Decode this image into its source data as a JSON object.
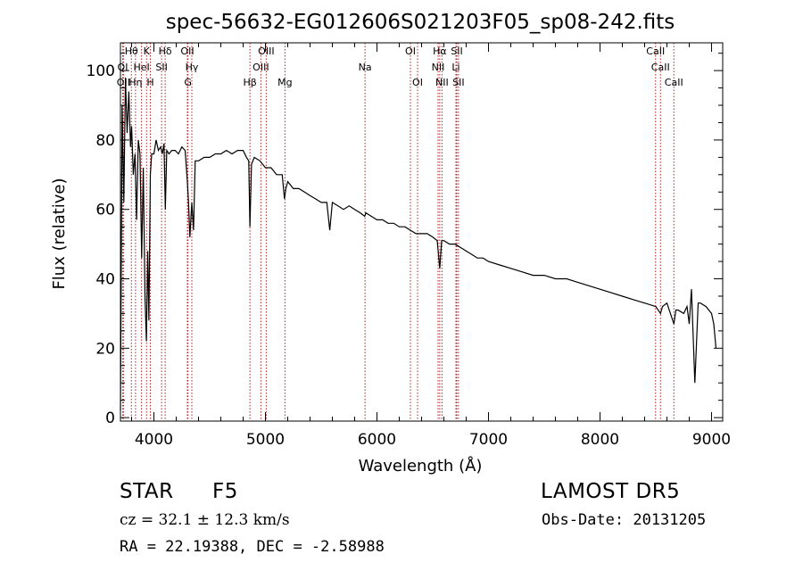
{
  "chart_data": {
    "type": "line",
    "title": "spec-56632-EG012606S021203F05_sp08-242.fits",
    "xlabel": "Wavelength (Å)",
    "ylabel": "Flux (relative)",
    "xlim": [
      3700,
      9100
    ],
    "ylim": [
      -1,
      108
    ],
    "xticks": [
      4000,
      5000,
      6000,
      7000,
      8000,
      9000
    ],
    "yticks": [
      0,
      20,
      40,
      60,
      80,
      100
    ],
    "grid": false,
    "line_color": "#000000",
    "marker_color": "#b22222",
    "series": [
      {
        "x": [
          3700,
          3715,
          3730,
          3745,
          3760,
          3775,
          3790,
          3800,
          3815,
          3830,
          3845,
          3860,
          3875,
          3890,
          3905,
          3920,
          3933,
          3945,
          3955,
          3968,
          3980,
          4000,
          4020,
          4040,
          4060,
          4075,
          4090,
          4102,
          4115,
          4135,
          4160,
          4190,
          4220,
          4250,
          4280,
          4300,
          4310,
          4322,
          4340,
          4355,
          4370,
          4400,
          4450,
          4500,
          4550,
          4600,
          4650,
          4700,
          4750,
          4800,
          4830,
          4850,
          4861,
          4875,
          4900,
          4950,
          5000,
          5050,
          5100,
          5150,
          5170,
          5183,
          5200,
          5250,
          5300,
          5350,
          5400,
          5450,
          5500,
          5550,
          5577,
          5600,
          5650,
          5700,
          5750,
          5800,
          5850,
          5890,
          5900,
          5950,
          6000,
          6050,
          6100,
          6150,
          6200,
          6250,
          6300,
          6350,
          6400,
          6450,
          6500,
          6540,
          6563,
          6580,
          6600,
          6650,
          6700,
          6750,
          6800,
          6850,
          6900,
          6950,
          7000,
          7100,
          7200,
          7300,
          7400,
          7500,
          7600,
          7700,
          7800,
          7900,
          8000,
          8100,
          8200,
          8300,
          8400,
          8500,
          8542,
          8560,
          8600,
          8662,
          8680,
          8700,
          8750,
          8780,
          8800,
          8820,
          8850,
          8880,
          8900,
          8950,
          9000,
          9020,
          9040
        ],
        "y": [
          2,
          90,
          62,
          98,
          82,
          94,
          78,
          84,
          70,
          76,
          57,
          80,
          76,
          46,
          72,
          35,
          22,
          48,
          28,
          70,
          76,
          76,
          80,
          77,
          78,
          76,
          79,
          60,
          77,
          76,
          77,
          77,
          76,
          78,
          77,
          68,
          62,
          52,
          62,
          54,
          74,
          74,
          75,
          75,
          76,
          76,
          77,
          76,
          77,
          77,
          75,
          74,
          55,
          73,
          75,
          74,
          72,
          72,
          70,
          70,
          63,
          66,
          68,
          66,
          66,
          65,
          64,
          63,
          62,
          62,
          54,
          62,
          61,
          60,
          61,
          60,
          59,
          58,
          59,
          58,
          57,
          57,
          56,
          56,
          55,
          55,
          54,
          53,
          53,
          53,
          52,
          51,
          43,
          51,
          51,
          50,
          50,
          49,
          48,
          47,
          46,
          46,
          45,
          44,
          43,
          42,
          41,
          41,
          40,
          40,
          39,
          38,
          37,
          36,
          35,
          34,
          33,
          32,
          30,
          32,
          33,
          27,
          31,
          31,
          30,
          32,
          27,
          37,
          10,
          33,
          33,
          32,
          30,
          27,
          20
        ]
      }
    ],
    "line_labels": [
      {
        "text": "Hθ",
        "x": 3798,
        "row": 0
      },
      {
        "text": "K",
        "x": 3934,
        "row": 0
      },
      {
        "text": "Hδ",
        "x": 4101,
        "row": 0
      },
      {
        "text": "OII",
        "x": 4300,
        "row": 0
      },
      {
        "text": "OIII",
        "x": 5007,
        "row": 0
      },
      {
        "text": "OI",
        "x": 6300,
        "row": 0
      },
      {
        "text": "Hα",
        "x": 6563,
        "row": 0
      },
      {
        "text": "SII",
        "x": 6716,
        "row": 0
      },
      {
        "text": "CaII",
        "x": 8498,
        "row": 0
      },
      {
        "text": "OI",
        "x": 3720,
        "row": 1
      },
      {
        "text": "HeI",
        "x": 3889,
        "row": 1
      },
      {
        "text": "SII",
        "x": 4069,
        "row": 1
      },
      {
        "text": "Hγ",
        "x": 4340,
        "row": 1
      },
      {
        "text": "OIII",
        "x": 4959,
        "row": 1
      },
      {
        "text": "Na",
        "x": 5893,
        "row": 1
      },
      {
        "text": "NII",
        "x": 6548,
        "row": 1
      },
      {
        "text": "Li",
        "x": 6708,
        "row": 1
      },
      {
        "text": "CaII",
        "x": 8542,
        "row": 1
      },
      {
        "text": "OII",
        "x": 3727,
        "row": 2
      },
      {
        "text": "Hη",
        "x": 3835,
        "row": 2
      },
      {
        "text": "H",
        "x": 3968,
        "row": 2
      },
      {
        "text": "G",
        "x": 4305,
        "row": 2
      },
      {
        "text": "Hβ",
        "x": 4861,
        "row": 2
      },
      {
        "text": "Mg",
        "x": 5175,
        "row": 2
      },
      {
        "text": "OI",
        "x": 6364,
        "row": 2
      },
      {
        "text": "NII",
        "x": 6583,
        "row": 2
      },
      {
        "text": "SII",
        "x": 6731,
        "row": 2
      },
      {
        "text": "CaII",
        "x": 8662,
        "row": 2
      }
    ]
  },
  "info": {
    "object_type": "STAR",
    "subclass": "F5",
    "survey": "LAMOST DR5",
    "redshift": "cz = 32.1 ± 12.3 km/s",
    "obs_date": "Obs-Date: 20131205",
    "coords": "RA =  22.19388, DEC =  -2.58988"
  }
}
